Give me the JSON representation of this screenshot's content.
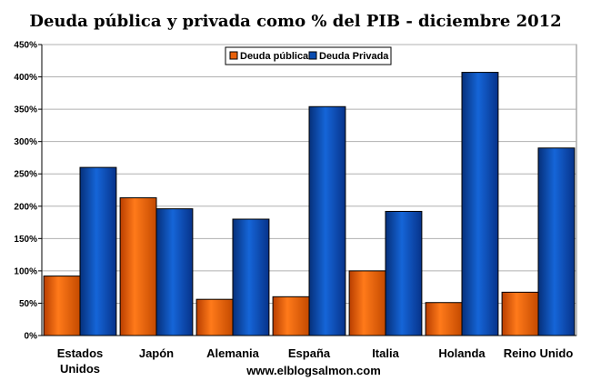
{
  "chart_data": {
    "type": "bar",
    "title": "Deuda pública y privada como % del PIB - diciembre 2012",
    "categories": [
      [
        "Estados",
        "Unidos"
      ],
      [
        "Japón"
      ],
      [
        "Alemania"
      ],
      [
        "España"
      ],
      [
        "Italia"
      ],
      [
        "Holanda"
      ],
      [
        "Reino Unido"
      ]
    ],
    "series": [
      {
        "name": "Deuda pública",
        "color": "#e8600a",
        "values": [
          92,
          213,
          56,
          60,
          100,
          51,
          67
        ]
      },
      {
        "name": "Deuda Privada",
        "color": "#0a4cb0",
        "values": [
          260,
          196,
          180,
          354,
          192,
          407,
          290
        ]
      }
    ],
    "ylim": [
      0,
      450
    ],
    "yticks": [
      "0%",
      "50%",
      "100%",
      "150%",
      "200%",
      "250%",
      "300%",
      "350%",
      "400%",
      "450%"
    ],
    "grid": true,
    "legend": "top-center",
    "source": "www.elblogsalmon.com"
  }
}
